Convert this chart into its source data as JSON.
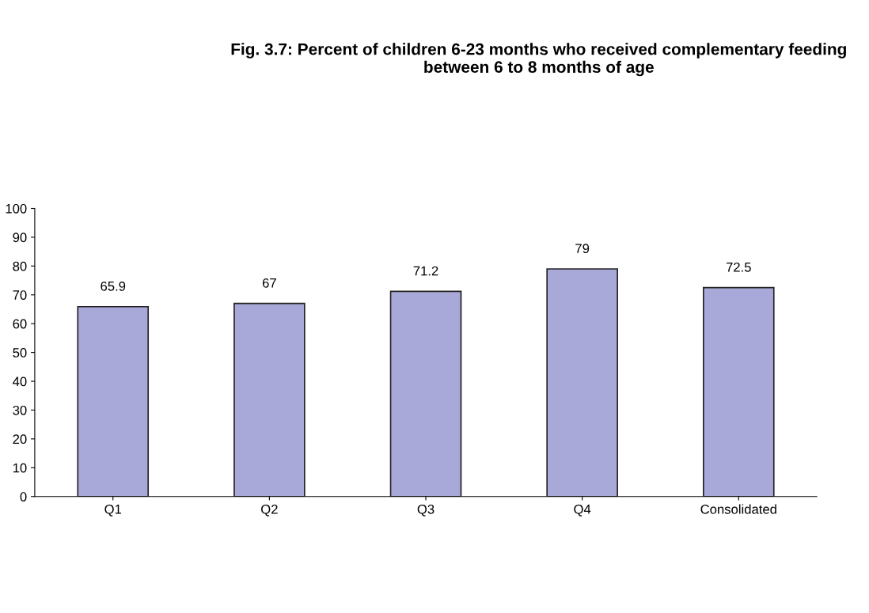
{
  "chart_data": {
    "type": "bar",
    "title": "Fig. 3.7: Percent of children 6-23 months who received complementary feeding between 6 to 8 months of age",
    "categories": [
      "Q1",
      "Q2",
      "Q3",
      "Q4",
      "Consolidated"
    ],
    "values": [
      65.9,
      67,
      71.2,
      79,
      72.5
    ],
    "color": "#a9a9d9",
    "ylim": [
      0,
      100
    ],
    "yticks": [
      0,
      10,
      20,
      30,
      40,
      50,
      60,
      70,
      80,
      90,
      100
    ],
    "data_labels": true,
    "grid": false
  }
}
